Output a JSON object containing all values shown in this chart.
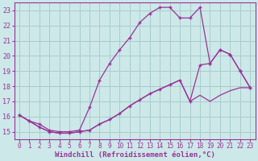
{
  "background_color": "#cce8e8",
  "grid_color": "#aacccc",
  "line_color": "#993399",
  "marker": "+",
  "xlabel": "Windchill (Refroidissement éolien,°C)",
  "xlabel_fontsize": 6.5,
  "xtick_fontsize": 5.5,
  "ytick_fontsize": 6.0,
  "xlim": [
    -0.5,
    23.5
  ],
  "ylim": [
    14.5,
    23.5
  ],
  "yticks": [
    15,
    16,
    17,
    18,
    19,
    20,
    21,
    22,
    23
  ],
  "xticks": [
    0,
    1,
    2,
    3,
    4,
    5,
    6,
    7,
    8,
    9,
    10,
    11,
    12,
    13,
    14,
    15,
    16,
    17,
    18,
    19,
    20,
    21,
    22,
    23
  ],
  "line1_x": [
    0,
    1,
    2,
    3,
    4,
    5,
    6,
    7,
    8,
    9,
    10,
    11,
    12,
    13,
    14,
    15,
    16,
    17,
    18,
    19,
    20,
    21,
    22,
    23
  ],
  "line1_y": [
    16.1,
    15.7,
    15.5,
    15.1,
    15.0,
    15.0,
    15.1,
    16.6,
    18.4,
    19.5,
    20.4,
    21.2,
    22.2,
    22.8,
    23.2,
    23.2,
    22.5,
    22.5,
    23.2,
    19.5,
    20.4,
    20.1,
    19.0,
    17.9
  ],
  "line2_x": [
    0,
    1,
    2,
    3,
    4,
    5,
    6,
    7,
    8,
    9,
    10,
    11,
    12,
    13,
    14,
    15,
    16,
    17,
    18,
    19,
    20,
    21,
    22,
    23
  ],
  "line2_y": [
    16.1,
    15.7,
    15.3,
    15.0,
    14.9,
    14.9,
    15.0,
    15.1,
    15.5,
    15.8,
    16.2,
    16.7,
    17.1,
    17.5,
    17.8,
    18.1,
    18.4,
    17.0,
    19.4,
    19.5,
    20.4,
    20.1,
    19.0,
    17.9
  ],
  "line3_x": [
    0,
    1,
    2,
    3,
    4,
    5,
    6,
    7,
    8,
    9,
    10,
    11,
    12,
    13,
    14,
    15,
    16,
    17,
    18,
    19,
    20,
    21,
    22,
    23
  ],
  "line3_y": [
    16.1,
    15.7,
    15.3,
    15.0,
    14.9,
    14.9,
    15.0,
    15.1,
    15.5,
    15.8,
    16.2,
    16.7,
    17.1,
    17.5,
    17.8,
    18.1,
    18.4,
    17.0,
    17.4,
    17.0,
    17.4,
    17.7,
    17.9,
    17.9
  ]
}
